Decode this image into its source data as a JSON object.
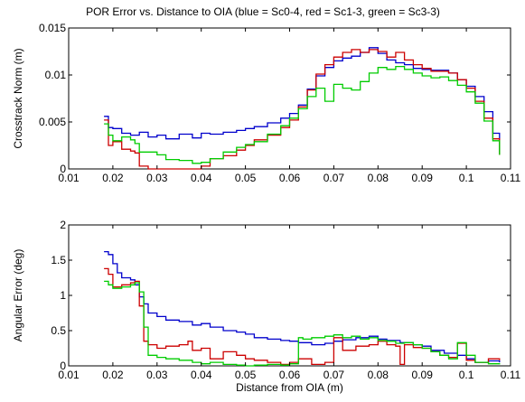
{
  "title": "POR Error vs. Distance to OIA (blue = Sc0-4, red = Sc1-3, green = Sc3-3)",
  "chart_data": [
    {
      "type": "line",
      "ylabel": "Crosstrack Norm (m)",
      "xlabel": "",
      "xlim": [
        0.01,
        0.11
      ],
      "ylim": [
        0,
        0.015
      ],
      "xticks": [
        "0.01",
        "0.02",
        "0.03",
        "0.04",
        "0.05",
        "0.06",
        "0.07",
        "0.08",
        "0.09",
        "0.1",
        "0.11"
      ],
      "yticks": [
        "0",
        "0.005",
        "0.01",
        "0.015"
      ],
      "xtick_values": [
        0.01,
        0.02,
        0.03,
        0.04,
        0.05,
        0.06,
        0.07,
        0.08,
        0.09,
        0.1,
        0.11
      ],
      "ytick_values": [
        0,
        0.005,
        0.01,
        0.015
      ],
      "grid": false,
      "series": [
        {
          "color": "#0000cc",
          "x": [
            0.018,
            0.019,
            0.02,
            0.022,
            0.024,
            0.026,
            0.028,
            0.03,
            0.032,
            0.035,
            0.038,
            0.04,
            0.042,
            0.045,
            0.048,
            0.05,
            0.052,
            0.055,
            0.058,
            0.06,
            0.062,
            0.064,
            0.066,
            0.068,
            0.07,
            0.072,
            0.074,
            0.076,
            0.078,
            0.08,
            0.082,
            0.084,
            0.086,
            0.088,
            0.09,
            0.092,
            0.094,
            0.096,
            0.098,
            0.1,
            0.102,
            0.104,
            0.106,
            0.1075
          ],
          "y": [
            0.0056,
            0.0044,
            0.0043,
            0.0038,
            0.0036,
            0.0039,
            0.0034,
            0.0036,
            0.0032,
            0.0037,
            0.0033,
            0.0038,
            0.0037,
            0.0039,
            0.0041,
            0.0043,
            0.0045,
            0.0049,
            0.0054,
            0.0059,
            0.0068,
            0.0085,
            0.0099,
            0.0108,
            0.0115,
            0.0118,
            0.012,
            0.0124,
            0.0129,
            0.0123,
            0.0116,
            0.0113,
            0.0111,
            0.0107,
            0.0106,
            0.0105,
            0.0105,
            0.0102,
            0.0095,
            0.0088,
            0.0077,
            0.0061,
            0.0038,
            0.0017
          ]
        },
        {
          "color": "#cc0000",
          "x": [
            0.018,
            0.019,
            0.02,
            0.022,
            0.024,
            0.025,
            0.026,
            0.028,
            0.03,
            0.032,
            0.035,
            0.038,
            0.04,
            0.042,
            0.045,
            0.048,
            0.05,
            0.052,
            0.055,
            0.058,
            0.06,
            0.062,
            0.064,
            0.066,
            0.068,
            0.07,
            0.072,
            0.074,
            0.076,
            0.078,
            0.08,
            0.082,
            0.084,
            0.086,
            0.088,
            0.09,
            0.092,
            0.094,
            0.096,
            0.098,
            0.1,
            0.102,
            0.104,
            0.106,
            0.1075
          ],
          "y": [
            0.0052,
            0.0025,
            0.0029,
            0.0021,
            0.0019,
            0.0017,
            0.0003,
            0.0,
            0.0,
            0.0,
            0.0,
            0.0,
            0.0003,
            0.0011,
            0.0014,
            0.002,
            0.0025,
            0.0031,
            0.0036,
            0.0044,
            0.0052,
            0.0066,
            0.0084,
            0.0101,
            0.0111,
            0.0119,
            0.0124,
            0.0127,
            0.0124,
            0.0127,
            0.0125,
            0.0119,
            0.0124,
            0.0116,
            0.0111,
            0.0107,
            0.0104,
            0.0104,
            0.0102,
            0.0095,
            0.0086,
            0.0072,
            0.0054,
            0.0032,
            0.0015
          ]
        },
        {
          "color": "#00cc00",
          "x": [
            0.018,
            0.019,
            0.02,
            0.022,
            0.024,
            0.025,
            0.026,
            0.028,
            0.03,
            0.032,
            0.035,
            0.038,
            0.04,
            0.042,
            0.045,
            0.048,
            0.05,
            0.052,
            0.055,
            0.058,
            0.06,
            0.062,
            0.064,
            0.066,
            0.068,
            0.07,
            0.072,
            0.074,
            0.076,
            0.078,
            0.08,
            0.082,
            0.084,
            0.086,
            0.088,
            0.09,
            0.092,
            0.094,
            0.096,
            0.098,
            0.1,
            0.102,
            0.104,
            0.106,
            0.1075
          ],
          "y": [
            0.0048,
            0.0036,
            0.003,
            0.0034,
            0.0031,
            0.0027,
            0.0018,
            0.0018,
            0.0015,
            0.001,
            0.0009,
            0.0006,
            0.0007,
            0.0011,
            0.0018,
            0.0023,
            0.0026,
            0.0029,
            0.0037,
            0.0046,
            0.0054,
            0.0064,
            0.0077,
            0.0086,
            0.0072,
            0.009,
            0.0086,
            0.0084,
            0.0093,
            0.0102,
            0.0108,
            0.0106,
            0.0109,
            0.0106,
            0.0102,
            0.0099,
            0.0097,
            0.0098,
            0.0094,
            0.0089,
            0.0082,
            0.007,
            0.0051,
            0.003,
            0.0015
          ]
        }
      ]
    },
    {
      "type": "line",
      "ylabel": "Angular Error (deg)",
      "xlabel": "Distance from OIA (m)",
      "xlim": [
        0.01,
        0.11
      ],
      "ylim": [
        0,
        2
      ],
      "xticks": [
        "0.01",
        "0.02",
        "0.03",
        "0.04",
        "0.05",
        "0.06",
        "0.07",
        "0.08",
        "0.09",
        "0.1",
        "0.11"
      ],
      "yticks": [
        "0",
        "0.5",
        "1",
        "1.5",
        "2"
      ],
      "xtick_values": [
        0.01,
        0.02,
        0.03,
        0.04,
        0.05,
        0.06,
        0.07,
        0.08,
        0.09,
        0.1,
        0.11
      ],
      "ytick_values": [
        0,
        0.5,
        1,
        1.5,
        2
      ],
      "grid": false,
      "series": [
        {
          "color": "#0000cc",
          "x": [
            0.018,
            0.019,
            0.02,
            0.021,
            0.022,
            0.024,
            0.025,
            0.026,
            0.027,
            0.028,
            0.03,
            0.032,
            0.035,
            0.038,
            0.04,
            0.042,
            0.045,
            0.048,
            0.05,
            0.052,
            0.055,
            0.058,
            0.06,
            0.062,
            0.065,
            0.068,
            0.07,
            0.072,
            0.075,
            0.078,
            0.08,
            0.082,
            0.085,
            0.088,
            0.09,
            0.092,
            0.095,
            0.098,
            0.1,
            0.102,
            0.105,
            0.1075
          ],
          "y": [
            1.62,
            1.58,
            1.45,
            1.32,
            1.25,
            1.22,
            1.15,
            0.98,
            0.88,
            0.75,
            0.7,
            0.65,
            0.63,
            0.58,
            0.6,
            0.55,
            0.5,
            0.48,
            0.45,
            0.4,
            0.38,
            0.36,
            0.35,
            0.33,
            0.3,
            0.32,
            0.35,
            0.37,
            0.4,
            0.42,
            0.38,
            0.36,
            0.33,
            0.3,
            0.28,
            0.22,
            0.18,
            0.15,
            0.1,
            0.05,
            0.07,
            0.05
          ]
        },
        {
          "color": "#cc0000",
          "x": [
            0.018,
            0.019,
            0.02,
            0.022,
            0.024,
            0.025,
            0.026,
            0.027,
            0.028,
            0.03,
            0.032,
            0.035,
            0.037,
            0.038,
            0.04,
            0.042,
            0.045,
            0.048,
            0.05,
            0.052,
            0.055,
            0.058,
            0.06,
            0.062,
            0.065,
            0.068,
            0.07,
            0.072,
            0.075,
            0.078,
            0.08,
            0.082,
            0.084,
            0.085,
            0.086,
            0.088,
            0.09,
            0.092,
            0.094,
            0.096,
            0.098,
            0.1,
            0.102,
            0.105,
            0.1075
          ],
          "y": [
            1.38,
            1.3,
            1.12,
            1.15,
            1.18,
            1.2,
            0.85,
            0.35,
            0.3,
            0.25,
            0.28,
            0.3,
            0.35,
            0.22,
            0.25,
            0.1,
            0.2,
            0.15,
            0.1,
            0.08,
            0.05,
            0.02,
            0.05,
            0.1,
            0.02,
            0.05,
            0.4,
            0.22,
            0.28,
            0.3,
            0.35,
            0.3,
            0.28,
            0.02,
            0.3,
            0.26,
            0.25,
            0.2,
            0.15,
            0.12,
            0.32,
            0.08,
            0.05,
            0.1,
            0.08
          ]
        },
        {
          "color": "#00cc00",
          "x": [
            0.018,
            0.019,
            0.02,
            0.022,
            0.024,
            0.025,
            0.026,
            0.027,
            0.028,
            0.03,
            0.032,
            0.035,
            0.038,
            0.04,
            0.042,
            0.045,
            0.048,
            0.05,
            0.052,
            0.055,
            0.058,
            0.06,
            0.062,
            0.063,
            0.065,
            0.068,
            0.07,
            0.072,
            0.074,
            0.076,
            0.078,
            0.08,
            0.082,
            0.084,
            0.086,
            0.088,
            0.09,
            0.092,
            0.094,
            0.096,
            0.098,
            0.1,
            0.102,
            0.105,
            0.1075
          ],
          "y": [
            1.2,
            1.15,
            1.1,
            1.12,
            1.15,
            1.18,
            1.05,
            0.55,
            0.15,
            0.12,
            0.1,
            0.08,
            0.05,
            0.03,
            0.05,
            0.02,
            0.01,
            0.0,
            0.01,
            0.02,
            0.01,
            0.03,
            0.4,
            0.38,
            0.4,
            0.42,
            0.44,
            0.4,
            0.42,
            0.38,
            0.4,
            0.36,
            0.35,
            0.32,
            0.33,
            0.3,
            0.25,
            0.2,
            0.15,
            0.1,
            0.33,
            0.15,
            0.05,
            0.03,
            0.02
          ]
        }
      ]
    }
  ]
}
